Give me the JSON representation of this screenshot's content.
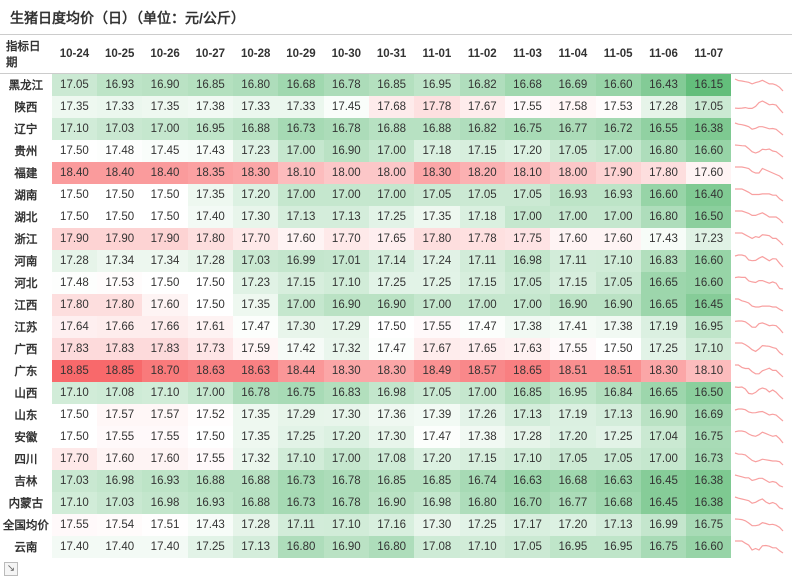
{
  "title": "生猪日度均价（日）（单位：元/公斤）",
  "corner_label": "指标日期",
  "dates": [
    "10-24",
    "10-25",
    "10-26",
    "10-27",
    "10-28",
    "10-29",
    "10-30",
    "10-31",
    "11-01",
    "11-02",
    "11-03",
    "11-04",
    "11-05",
    "11-06",
    "11-07"
  ],
  "regions": [
    "黑龙江",
    "陕西",
    "辽宁",
    "贵州",
    "福建",
    "湖南",
    "湖北",
    "浙江",
    "河南",
    "河北",
    "江西",
    "江苏",
    "广西",
    "广东",
    "山西",
    "山东",
    "安徽",
    "四川",
    "吉林",
    "内蒙古",
    "全国均价",
    "云南"
  ],
  "values": [
    [
      17.05,
      16.93,
      16.9,
      16.85,
      16.8,
      16.68,
      16.78,
      16.85,
      16.95,
      16.82,
      16.68,
      16.69,
      16.6,
      16.43,
      16.15
    ],
    [
      17.35,
      17.33,
      17.35,
      17.38,
      17.33,
      17.33,
      17.45,
      17.68,
      17.78,
      17.67,
      17.55,
      17.58,
      17.53,
      17.28,
      17.05
    ],
    [
      17.1,
      17.03,
      17.0,
      16.95,
      16.88,
      16.73,
      16.78,
      16.88,
      16.88,
      16.82,
      16.75,
      16.77,
      16.72,
      16.55,
      16.38
    ],
    [
      17.5,
      17.48,
      17.45,
      17.43,
      17.23,
      17.0,
      16.9,
      17.0,
      17.18,
      17.15,
      17.2,
      17.05,
      17.0,
      16.8,
      16.6
    ],
    [
      18.4,
      18.4,
      18.4,
      18.35,
      18.3,
      18.1,
      18.0,
      18.0,
      18.3,
      18.2,
      18.1,
      18.0,
      17.9,
      17.8,
      17.6
    ],
    [
      17.5,
      17.5,
      17.5,
      17.35,
      17.2,
      17.0,
      17.0,
      17.0,
      17.05,
      17.05,
      17.05,
      16.93,
      16.93,
      16.6,
      16.4
    ],
    [
      17.5,
      17.5,
      17.5,
      17.4,
      17.3,
      17.13,
      17.13,
      17.25,
      17.35,
      17.18,
      17.0,
      17.0,
      17.0,
      16.8,
      16.5
    ],
    [
      17.9,
      17.9,
      17.9,
      17.8,
      17.7,
      17.6,
      17.7,
      17.65,
      17.8,
      17.78,
      17.75,
      17.6,
      17.6,
      17.43,
      17.23
    ],
    [
      17.28,
      17.34,
      17.34,
      17.28,
      17.03,
      16.99,
      17.01,
      17.14,
      17.24,
      17.11,
      16.98,
      17.11,
      17.1,
      16.83,
      16.6
    ],
    [
      17.48,
      17.53,
      17.5,
      17.5,
      17.23,
      17.15,
      17.1,
      17.25,
      17.25,
      17.15,
      17.05,
      17.15,
      17.05,
      16.65,
      16.6
    ],
    [
      17.8,
      17.8,
      17.6,
      17.5,
      17.35,
      17.0,
      16.9,
      16.9,
      17.0,
      17.0,
      17.0,
      16.9,
      16.9,
      16.65,
      16.45
    ],
    [
      17.64,
      17.66,
      17.66,
      17.61,
      17.47,
      17.3,
      17.29,
      17.5,
      17.55,
      17.47,
      17.38,
      17.41,
      17.38,
      17.19,
      16.95
    ],
    [
      17.83,
      17.83,
      17.83,
      17.73,
      17.59,
      17.42,
      17.32,
      17.47,
      17.67,
      17.65,
      17.63,
      17.55,
      17.5,
      17.25,
      17.1
    ],
    [
      18.85,
      18.85,
      18.7,
      18.63,
      18.63,
      18.44,
      18.3,
      18.3,
      18.49,
      18.57,
      18.65,
      18.51,
      18.51,
      18.3,
      18.1
    ],
    [
      17.1,
      17.08,
      17.1,
      17.0,
      16.78,
      16.75,
      16.83,
      16.98,
      17.05,
      17.0,
      16.85,
      16.95,
      16.84,
      16.65,
      16.5
    ],
    [
      17.5,
      17.57,
      17.57,
      17.52,
      17.35,
      17.29,
      17.3,
      17.36,
      17.39,
      17.26,
      17.13,
      17.19,
      17.13,
      16.9,
      16.69
    ],
    [
      17.5,
      17.55,
      17.55,
      17.5,
      17.35,
      17.25,
      17.2,
      17.3,
      17.47,
      17.38,
      17.28,
      17.2,
      17.25,
      17.04,
      16.75
    ],
    [
      17.7,
      17.6,
      17.6,
      17.55,
      17.32,
      17.1,
      17.0,
      17.08,
      17.2,
      17.15,
      17.1,
      17.05,
      17.05,
      17.0,
      16.73
    ],
    [
      17.03,
      16.98,
      16.93,
      16.88,
      16.88,
      16.73,
      16.78,
      16.85,
      16.85,
      16.74,
      16.63,
      16.68,
      16.63,
      16.45,
      16.38
    ],
    [
      17.1,
      17.03,
      16.98,
      16.93,
      16.88,
      16.73,
      16.78,
      16.9,
      16.98,
      16.8,
      16.7,
      16.77,
      16.68,
      16.45,
      16.38
    ],
    [
      17.55,
      17.54,
      17.51,
      17.43,
      17.28,
      17.11,
      17.1,
      17.16,
      17.3,
      17.25,
      17.17,
      17.2,
      17.13,
      16.99,
      16.75
    ],
    [
      17.4,
      17.4,
      17.4,
      17.25,
      17.13,
      16.8,
      16.9,
      16.8,
      17.08,
      17.1,
      17.05,
      16.95,
      16.95,
      16.75,
      16.6
    ]
  ],
  "heatmap": {
    "min_color": "#63be7b",
    "mid_color": "#ffffff",
    "max_color": "#f8696b",
    "global_min": 16.15,
    "global_max": 18.85
  },
  "sparkline": {
    "stroke": "#f8a0a0",
    "stroke_width": 1.2,
    "width": 52,
    "height": 16
  },
  "text_color_dark": "#333333",
  "header_border": "#cccccc",
  "font_size_body": 11.5,
  "font_size_title": 14
}
